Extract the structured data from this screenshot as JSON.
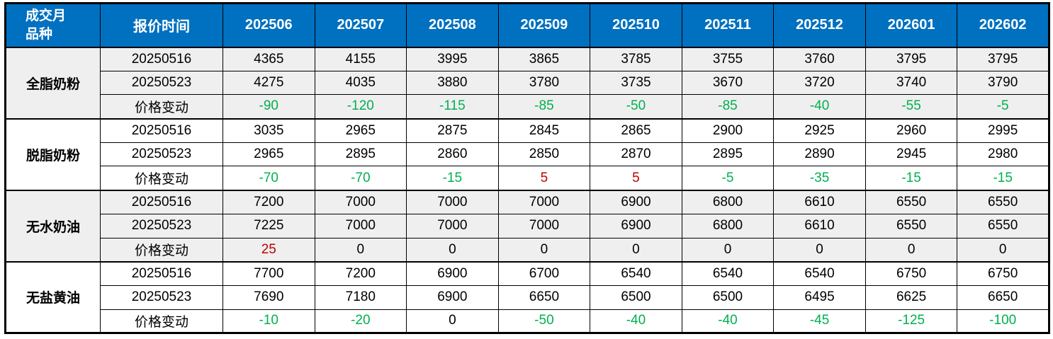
{
  "table": {
    "corner": {
      "line1": "成交月",
      "line2": "品种"
    },
    "quote_time_header": "报价时间",
    "months": [
      "202506",
      "202507",
      "202508",
      "202509",
      "202510",
      "202511",
      "202512",
      "202601",
      "202602"
    ],
    "change_row_label": "价格变动",
    "groups": [
      {
        "product": "全脂奶粉",
        "shaded": true,
        "rows": [
          {
            "label": "20250516",
            "type": "price",
            "values": [
              4365,
              4155,
              3995,
              3865,
              3785,
              3755,
              3760,
              3795,
              3795
            ]
          },
          {
            "label": "20250523",
            "type": "price",
            "values": [
              4275,
              4035,
              3880,
              3780,
              3735,
              3670,
              3720,
              3740,
              3790
            ]
          },
          {
            "label": "价格变动",
            "type": "change",
            "values": [
              -90,
              -120,
              -115,
              -85,
              -50,
              -85,
              -40,
              -55,
              -5
            ]
          }
        ]
      },
      {
        "product": "脱脂奶粉",
        "shaded": false,
        "rows": [
          {
            "label": "20250516",
            "type": "price",
            "values": [
              3035,
              2965,
              2875,
              2845,
              2865,
              2900,
              2925,
              2960,
              2995
            ]
          },
          {
            "label": "20250523",
            "type": "price",
            "values": [
              2965,
              2895,
              2860,
              2850,
              2870,
              2895,
              2890,
              2945,
              2980
            ]
          },
          {
            "label": "价格变动",
            "type": "change",
            "values": [
              -70,
              -70,
              -15,
              5,
              5,
              -5,
              -35,
              -15,
              -15
            ]
          }
        ]
      },
      {
        "product": "无水奶油",
        "shaded": true,
        "rows": [
          {
            "label": "20250516",
            "type": "price",
            "values": [
              7200,
              7000,
              7000,
              7000,
              6900,
              6800,
              6610,
              6550,
              6550
            ]
          },
          {
            "label": "20250523",
            "type": "price",
            "values": [
              7225,
              7000,
              7000,
              7000,
              6900,
              6800,
              6610,
              6550,
              6550
            ]
          },
          {
            "label": "价格变动",
            "type": "change",
            "values": [
              25,
              0,
              0,
              0,
              0,
              0,
              0,
              0,
              0
            ]
          }
        ]
      },
      {
        "product": "无盐黄油",
        "shaded": false,
        "rows": [
          {
            "label": "20250516",
            "type": "price",
            "values": [
              7700,
              7200,
              6900,
              6700,
              6540,
              6540,
              6540,
              6750,
              6750
            ]
          },
          {
            "label": "20250523",
            "type": "price",
            "values": [
              7690,
              7180,
              6900,
              6650,
              6500,
              6500,
              6495,
              6625,
              6650
            ]
          },
          {
            "label": "价格变动",
            "type": "change",
            "values": [
              -10,
              -20,
              0,
              -50,
              -40,
              -40,
              -45,
              -125,
              -100
            ]
          }
        ]
      }
    ]
  },
  "colors": {
    "header_bg": "#0070C0",
    "header_text": "#FFFFFF",
    "grid": "#000000",
    "shaded_group_bg": "#EFEFEF",
    "plain_group_bg": "#FFFFFF",
    "decrease_text": "#00B050",
    "increase_text": "#C00000",
    "neutral_text": "#000000"
  }
}
